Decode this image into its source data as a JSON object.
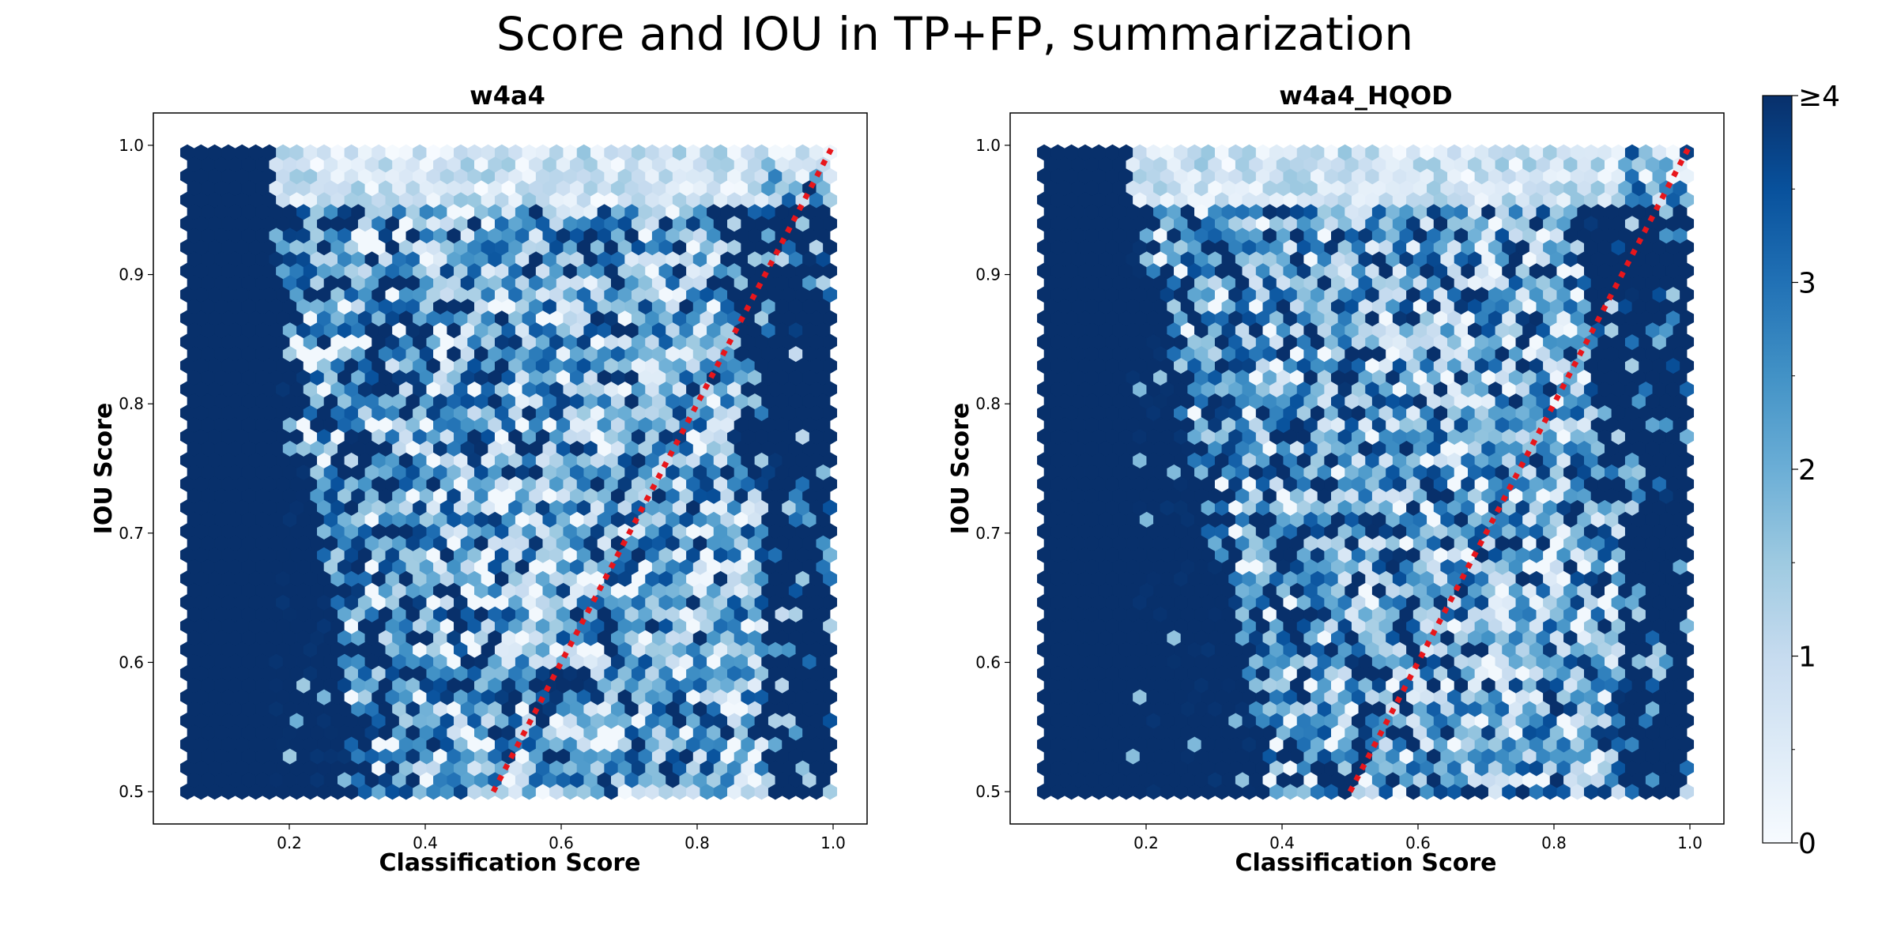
{
  "suptitle": "Score and IOU in TP+FP, summarization",
  "colormap": {
    "name": "Blues",
    "stops": [
      "#f7fbff",
      "#deebf7",
      "#c6dbef",
      "#9ecae1",
      "#6baed6",
      "#4292c6",
      "#2171b5",
      "#08519c",
      "#08306b"
    ]
  },
  "colorbar": {
    "range": [
      0,
      4
    ],
    "tick_values": [
      0,
      1,
      2,
      3,
      4
    ],
    "tick_labels": [
      "0",
      "1",
      "2",
      "3",
      "≥4"
    ]
  },
  "chart_data": [
    {
      "type": "hexbin",
      "title": "w4a4",
      "xlabel": "Classification Score",
      "ylabel": "IOU Score",
      "xlim": [
        0.0,
        1.05
      ],
      "ylim": [
        0.475,
        1.025
      ],
      "x_ticks": [
        0.2,
        0.4,
        0.6,
        0.8,
        1.0
      ],
      "x_tick_labels": [
        "0.2",
        "0.4",
        "0.6",
        "0.8",
        "1.0"
      ],
      "y_ticks": [
        0.5,
        0.6,
        0.7,
        0.8,
        0.9,
        1.0
      ],
      "y_tick_labels": [
        "0.5",
        "0.6",
        "0.7",
        "0.8",
        "0.9",
        "1.0"
      ],
      "data_extent": {
        "x": [
          0.05,
          1.0
        ],
        "y": [
          0.5,
          1.0
        ]
      },
      "dense_left_edge_at_low_iou": 0.3,
      "reference_line": {
        "style": "dotted",
        "color": "#e8161b",
        "x": [
          0.5,
          1.0
        ],
        "y": [
          0.5,
          1.0
        ]
      }
    },
    {
      "type": "hexbin",
      "title": "w4a4_HQOD",
      "xlabel": "Classification Score",
      "ylabel": "IOU Score",
      "xlim": [
        0.0,
        1.05
      ],
      "ylim": [
        0.475,
        1.025
      ],
      "x_ticks": [
        0.2,
        0.4,
        0.6,
        0.8,
        1.0
      ],
      "x_tick_labels": [
        "0.2",
        "0.4",
        "0.6",
        "0.8",
        "1.0"
      ],
      "y_ticks": [
        0.5,
        0.6,
        0.7,
        0.8,
        0.9,
        1.0
      ],
      "y_tick_labels": [
        "0.5",
        "0.6",
        "0.7",
        "0.8",
        "0.9",
        "1.0"
      ],
      "data_extent": {
        "x": [
          0.05,
          1.0
        ],
        "y": [
          0.5,
          1.0
        ]
      },
      "dense_left_edge_at_low_iou": 0.38,
      "reference_line": {
        "style": "dotted",
        "color": "#e8161b",
        "x": [
          0.5,
          1.0
        ],
        "y": [
          0.5,
          1.0
        ]
      }
    }
  ]
}
